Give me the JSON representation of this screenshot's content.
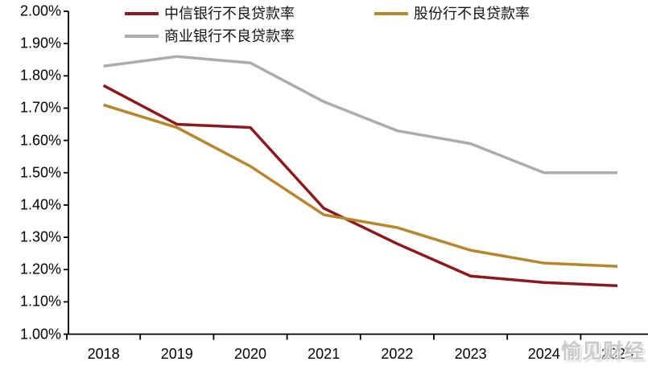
{
  "page": {
    "background": "#ffffff",
    "axis_color": "#000000"
  },
  "legend": {
    "items": [
      {
        "key": "citic",
        "label": "中信银行不良贷款率",
        "color": "#8E191C"
      },
      {
        "key": "jointstock",
        "label": "股份行不良贷款率",
        "color": "#B8862B"
      },
      {
        "key": "commercial",
        "label": "商业银行不良贷款率",
        "color": "#ACACAC"
      }
    ]
  },
  "watermark": {
    "text": "愉见财经"
  },
  "chart_data": {
    "type": "line",
    "title": "",
    "xlabel": "",
    "ylabel": "",
    "categories": [
      "2018",
      "2019",
      "2020",
      "2021",
      "2022",
      "2023",
      "2024",
      "2025"
    ],
    "series": [
      {
        "key": "citic",
        "name": "中信银行不良贷款率",
        "color": "#8E191C",
        "values": [
          1.77,
          1.65,
          1.64,
          1.39,
          1.28,
          1.18,
          1.16,
          1.15
        ]
      },
      {
        "key": "jointstock",
        "name": "股份行不良贷款率",
        "color": "#B8862B",
        "values": [
          1.71,
          1.64,
          1.52,
          1.37,
          1.33,
          1.26,
          1.22,
          1.21
        ]
      },
      {
        "key": "commercial",
        "name": "商业银行不良贷款率",
        "color": "#ACACAC",
        "values": [
          1.83,
          1.86,
          1.84,
          1.72,
          1.63,
          1.59,
          1.5,
          1.5
        ]
      }
    ],
    "ylim": [
      1.0,
      2.0
    ],
    "ytick_step": 0.1,
    "ytick_labels": [
      "2.00%",
      "1.90%",
      "1.80%",
      "1.70%",
      "1.60%",
      "1.50%",
      "1.40%",
      "1.30%",
      "1.20%",
      "1.10%",
      "1.00%"
    ],
    "grid": false,
    "legend_position": "top-left"
  }
}
